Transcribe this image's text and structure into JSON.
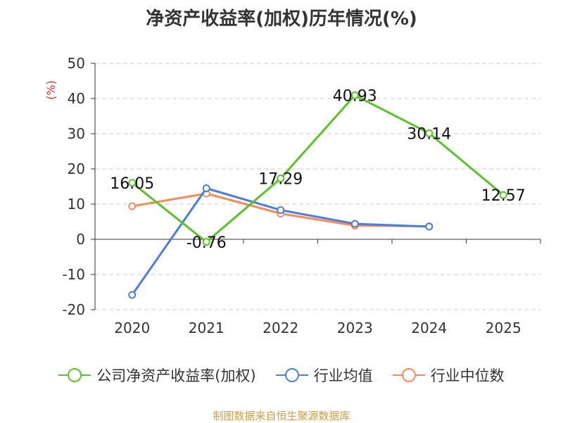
{
  "title": "净资产收益率(加权)历年情况(%)",
  "source": "制图数据来自恒生聚源数据库",
  "chart_data": {
    "type": "line",
    "x": [
      "2020",
      "2021",
      "2022",
      "2023",
      "2024",
      "2025"
    ],
    "ylabel": "(%)",
    "ylim": [
      -20,
      50
    ],
    "yticks": [
      -20,
      -10,
      0,
      10,
      20,
      30,
      40,
      50
    ],
    "grid": true,
    "legend_position": "bottom",
    "series": [
      {
        "name": "公司净资产收益率(加权)",
        "color": "#5cc22b",
        "values": [
          16.05,
          -0.76,
          17.29,
          40.93,
          30.14,
          12.57
        ],
        "labels": [
          "16.05",
          "-0.76",
          "17.29",
          "40.93",
          "30.14",
          "12.57"
        ]
      },
      {
        "name": "行业均值",
        "color": "#4d7fd9",
        "values": [
          -15.8,
          14.5,
          8.3,
          4.4,
          3.6,
          null
        ]
      },
      {
        "name": "行业中位数",
        "color": "#f58c5a",
        "values": [
          9.4,
          13.0,
          7.3,
          3.9,
          3.7,
          null
        ]
      }
    ]
  }
}
